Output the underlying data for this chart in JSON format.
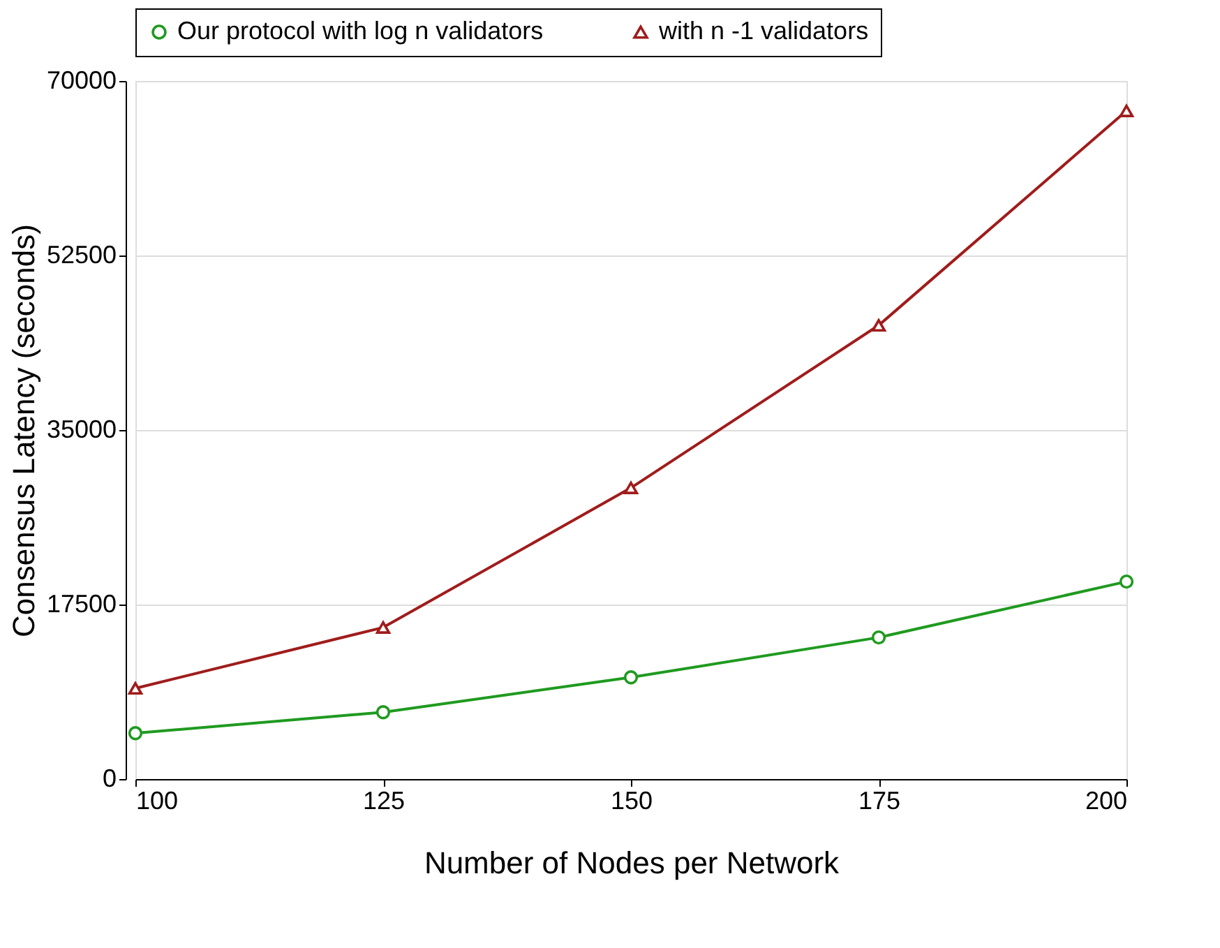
{
  "chart_data": {
    "type": "line",
    "xlabel": "Number of Nodes per Network",
    "ylabel": "Consensus Latency (seconds)",
    "x": [
      100,
      125,
      150,
      175,
      200
    ],
    "xlim": [
      100,
      200
    ],
    "xticks": [
      100,
      125,
      150,
      175,
      200
    ],
    "ylim": [
      0,
      70000
    ],
    "yticks": [
      0,
      17500,
      35000,
      52500,
      70000
    ],
    "grid": "y",
    "legend": "top",
    "line_style": "solid",
    "series": [
      {
        "name": "Our protocol with log n validators",
        "color": "#1f9a1f",
        "marker": "circle",
        "values": [
          4600,
          6700,
          10200,
          14200,
          19800
        ]
      },
      {
        "name": "with n -1 validators",
        "color": "#a01c1c",
        "marker": "triangle",
        "values": [
          9100,
          15200,
          29200,
          45500,
          67000
        ]
      }
    ]
  }
}
